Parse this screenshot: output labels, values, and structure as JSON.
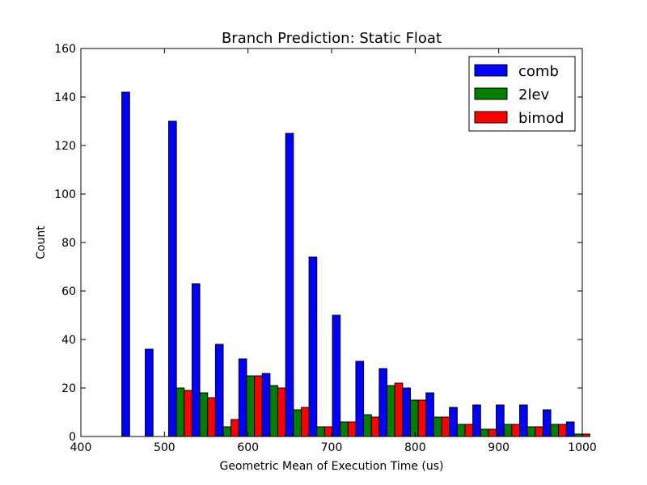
{
  "chart_data": {
    "type": "bar",
    "title": "Branch Prediction: Static Float",
    "xlabel": "Geometric Mean of Execution Time (us)",
    "ylabel": "Count",
    "xlim": [
      400,
      1000
    ],
    "ylim": [
      0,
      160
    ],
    "xticks": [
      400,
      500,
      600,
      700,
      800,
      900,
      1000
    ],
    "yticks": [
      0,
      20,
      40,
      60,
      80,
      100,
      120,
      140,
      160
    ],
    "legend_position": "top-right",
    "grid": false,
    "bins": [
      [
        449,
        477
      ],
      [
        477,
        505
      ],
      [
        505,
        533
      ],
      [
        533,
        561
      ],
      [
        561,
        589
      ],
      [
        589,
        617
      ],
      [
        617,
        645
      ],
      [
        645,
        673
      ],
      [
        673,
        701
      ],
      [
        701,
        729
      ],
      [
        729,
        757
      ],
      [
        757,
        785
      ],
      [
        785,
        813
      ],
      [
        813,
        841
      ],
      [
        841,
        869
      ],
      [
        869,
        897
      ],
      [
        897,
        925
      ],
      [
        925,
        953
      ],
      [
        953,
        981
      ],
      [
        981,
        1009
      ]
    ],
    "series": [
      {
        "name": "comb",
        "color": "#0000ff",
        "values": [
          142,
          36,
          130,
          63,
          38,
          32,
          26,
          125,
          74,
          50,
          31,
          28,
          20,
          18,
          12,
          13,
          13,
          13,
          11,
          6
        ]
      },
      {
        "name": "2lev",
        "color": "#008000",
        "values": [
          0,
          0,
          20,
          18,
          4,
          25,
          21,
          11,
          4,
          6,
          9,
          21,
          15,
          8,
          5,
          3,
          5,
          4,
          5,
          1
        ]
      },
      {
        "name": "bimod",
        "color": "#ff0000",
        "values": [
          0,
          0,
          19,
          16,
          7,
          25,
          20,
          12,
          4,
          6,
          8,
          22,
          15,
          8,
          5,
          3,
          5,
          4,
          5,
          1
        ]
      }
    ]
  }
}
